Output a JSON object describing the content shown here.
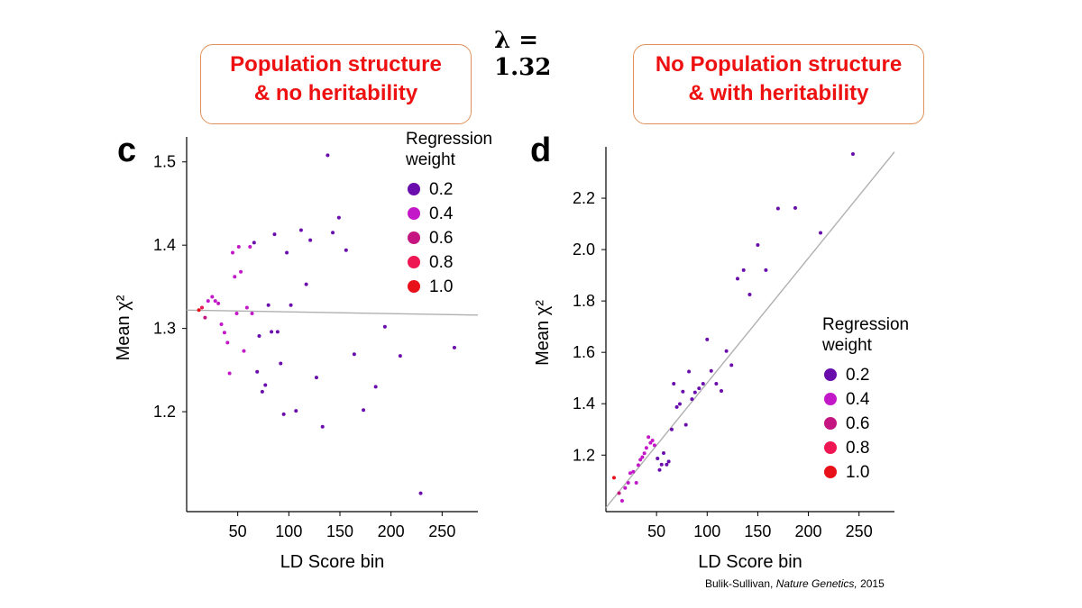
{
  "header": {
    "lambda_label": "λ = 1.32",
    "left_box": [
      "Population structure",
      "& no heritability"
    ],
    "right_box": [
      "No Population structure",
      "& with heritability"
    ],
    "panel_c": "c",
    "panel_d": "d"
  },
  "citation": {
    "author": "Bulik-Sullivan, ",
    "journal": "Nature Genetics,",
    "year": " 2015"
  },
  "colors": {
    "0.2": "#6a0dad",
    "0.4": "#c318c8",
    "0.6": "#c41580",
    "0.8": "#ee1653",
    "1.0": "#e8111a",
    "fit_line": "#b0b0b0",
    "box_border": "#e0915a",
    "box_text": "#ee1111"
  },
  "chart_data": [
    {
      "type": "scatter",
      "panel": "c",
      "xlabel": "LD Score bin",
      "ylabel": "Mean χ²",
      "xticks": [
        50,
        100,
        150,
        200,
        250
      ],
      "yticks": [
        1.2,
        1.3,
        1.4,
        1.5
      ],
      "xlim": [
        0,
        285
      ],
      "ylim": [
        1.08,
        1.53
      ],
      "fit_line": [
        [
          0,
          1.322
        ],
        [
          285,
          1.316
        ]
      ],
      "legend": {
        "title": [
          "Regression",
          "weight"
        ],
        "items": [
          "0.2",
          "0.4",
          "0.6",
          "0.8",
          "1.0"
        ]
      },
      "points": [
        [
          12,
          1.322,
          "1.0"
        ],
        [
          15,
          1.325,
          "0.8"
        ],
        [
          18,
          1.313,
          "0.6"
        ],
        [
          21,
          1.333,
          "0.4"
        ],
        [
          25,
          1.338,
          "0.4"
        ],
        [
          28,
          1.333,
          "0.4"
        ],
        [
          31,
          1.33,
          "0.4"
        ],
        [
          34,
          1.305,
          "0.4"
        ],
        [
          37,
          1.295,
          "0.4"
        ],
        [
          40,
          1.283,
          "0.4"
        ],
        [
          42,
          1.246,
          "0.4"
        ],
        [
          45,
          1.391,
          "0.4"
        ],
        [
          47,
          1.362,
          "0.4"
        ],
        [
          49,
          1.318,
          "0.4"
        ],
        [
          51,
          1.398,
          "0.4"
        ],
        [
          53,
          1.368,
          "0.4"
        ],
        [
          56,
          1.273,
          "0.4"
        ],
        [
          59,
          1.325,
          "0.4"
        ],
        [
          62,
          1.398,
          "0.4"
        ],
        [
          64,
          1.318,
          "0.4"
        ],
        [
          66,
          1.403,
          "0.2"
        ],
        [
          69,
          1.248,
          "0.2"
        ],
        [
          71,
          1.291,
          "0.2"
        ],
        [
          74,
          1.224,
          "0.2"
        ],
        [
          77,
          1.232,
          "0.2"
        ],
        [
          80,
          1.328,
          "0.2"
        ],
        [
          83,
          1.296,
          "0.2"
        ],
        [
          86,
          1.413,
          "0.2"
        ],
        [
          89,
          1.296,
          "0.2"
        ],
        [
          92,
          1.258,
          "0.2"
        ],
        [
          95,
          1.197,
          "0.2"
        ],
        [
          98,
          1.391,
          "0.2"
        ],
        [
          102,
          1.328,
          "0.2"
        ],
        [
          107,
          1.201,
          "0.2"
        ],
        [
          112,
          1.418,
          "0.2"
        ],
        [
          117,
          1.353,
          "0.2"
        ],
        [
          121,
          1.406,
          "0.2"
        ],
        [
          127,
          1.241,
          "0.2"
        ],
        [
          133,
          1.182,
          "0.2"
        ],
        [
          138,
          1.508,
          "0.2"
        ],
        [
          143,
          1.415,
          "0.2"
        ],
        [
          149,
          1.433,
          "0.2"
        ],
        [
          156,
          1.394,
          "0.2"
        ],
        [
          164,
          1.269,
          "0.2"
        ],
        [
          173,
          1.202,
          "0.2"
        ],
        [
          185,
          1.23,
          "0.2"
        ],
        [
          194,
          1.302,
          "0.2"
        ],
        [
          209,
          1.267,
          "0.2"
        ],
        [
          229,
          1.102,
          "0.2"
        ],
        [
          262,
          1.277,
          "0.2"
        ]
      ]
    },
    {
      "type": "scatter",
      "panel": "d",
      "xlabel": "LD Score bin",
      "ylabel": "Mean χ²",
      "xticks": [
        50,
        100,
        150,
        200,
        250
      ],
      "yticks": [
        1.2,
        1.4,
        1.6,
        1.8,
        2.0,
        2.2
      ],
      "xlim": [
        0,
        285
      ],
      "ylim": [
        0.98,
        2.4
      ],
      "fit_line": [
        [
          0,
          0.995
        ],
        [
          285,
          2.38
        ]
      ],
      "legend": {
        "title": [
          "Regression",
          "weight"
        ],
        "items": [
          "0.2",
          "0.4",
          "0.6",
          "0.8",
          "1.0"
        ]
      },
      "points": [
        [
          8,
          1.112,
          "1.0"
        ],
        [
          13,
          1.052,
          "0.6"
        ],
        [
          16,
          1.022,
          "0.4"
        ],
        [
          19,
          1.072,
          "0.4"
        ],
        [
          22,
          1.092,
          "0.4"
        ],
        [
          24,
          1.13,
          "0.4"
        ],
        [
          27,
          1.135,
          "0.4"
        ],
        [
          30,
          1.092,
          "0.4"
        ],
        [
          32,
          1.161,
          "0.4"
        ],
        [
          34,
          1.182,
          "0.4"
        ],
        [
          36,
          1.192,
          "0.4"
        ],
        [
          38,
          1.207,
          "0.4"
        ],
        [
          40,
          1.228,
          "0.4"
        ],
        [
          42,
          1.27,
          "0.4"
        ],
        [
          44,
          1.248,
          "0.4"
        ],
        [
          46,
          1.257,
          "0.4"
        ],
        [
          48,
          1.238,
          "0.4"
        ],
        [
          51,
          1.187,
          "0.2"
        ],
        [
          53,
          1.142,
          "0.2"
        ],
        [
          55,
          1.163,
          "0.2"
        ],
        [
          57,
          1.208,
          "0.2"
        ],
        [
          60,
          1.163,
          "0.2"
        ],
        [
          62,
          1.175,
          "0.2"
        ],
        [
          65,
          1.3,
          "0.2"
        ],
        [
          67,
          1.478,
          "0.2"
        ],
        [
          70,
          1.387,
          "0.2"
        ],
        [
          73,
          1.399,
          "0.2"
        ],
        [
          76,
          1.447,
          "0.2"
        ],
        [
          79,
          1.318,
          "0.2"
        ],
        [
          82,
          1.525,
          "0.2"
        ],
        [
          85,
          1.418,
          "0.2"
        ],
        [
          88,
          1.444,
          "0.2"
        ],
        [
          92,
          1.46,
          "0.2"
        ],
        [
          96,
          1.478,
          "0.2"
        ],
        [
          100,
          1.65,
          "0.2"
        ],
        [
          104,
          1.528,
          "0.2"
        ],
        [
          109,
          1.478,
          "0.2"
        ],
        [
          114,
          1.45,
          "0.2"
        ],
        [
          119,
          1.605,
          "0.2"
        ],
        [
          124,
          1.55,
          "0.2"
        ],
        [
          130,
          1.887,
          "0.2"
        ],
        [
          136,
          1.92,
          "0.2"
        ],
        [
          142,
          1.825,
          "0.2"
        ],
        [
          150,
          2.018,
          "0.2"
        ],
        [
          158,
          1.92,
          "0.2"
        ],
        [
          170,
          2.16,
          "0.2"
        ],
        [
          187,
          2.162,
          "0.2"
        ],
        [
          212,
          2.065,
          "0.2"
        ],
        [
          244,
          2.372,
          "0.2"
        ]
      ]
    }
  ]
}
